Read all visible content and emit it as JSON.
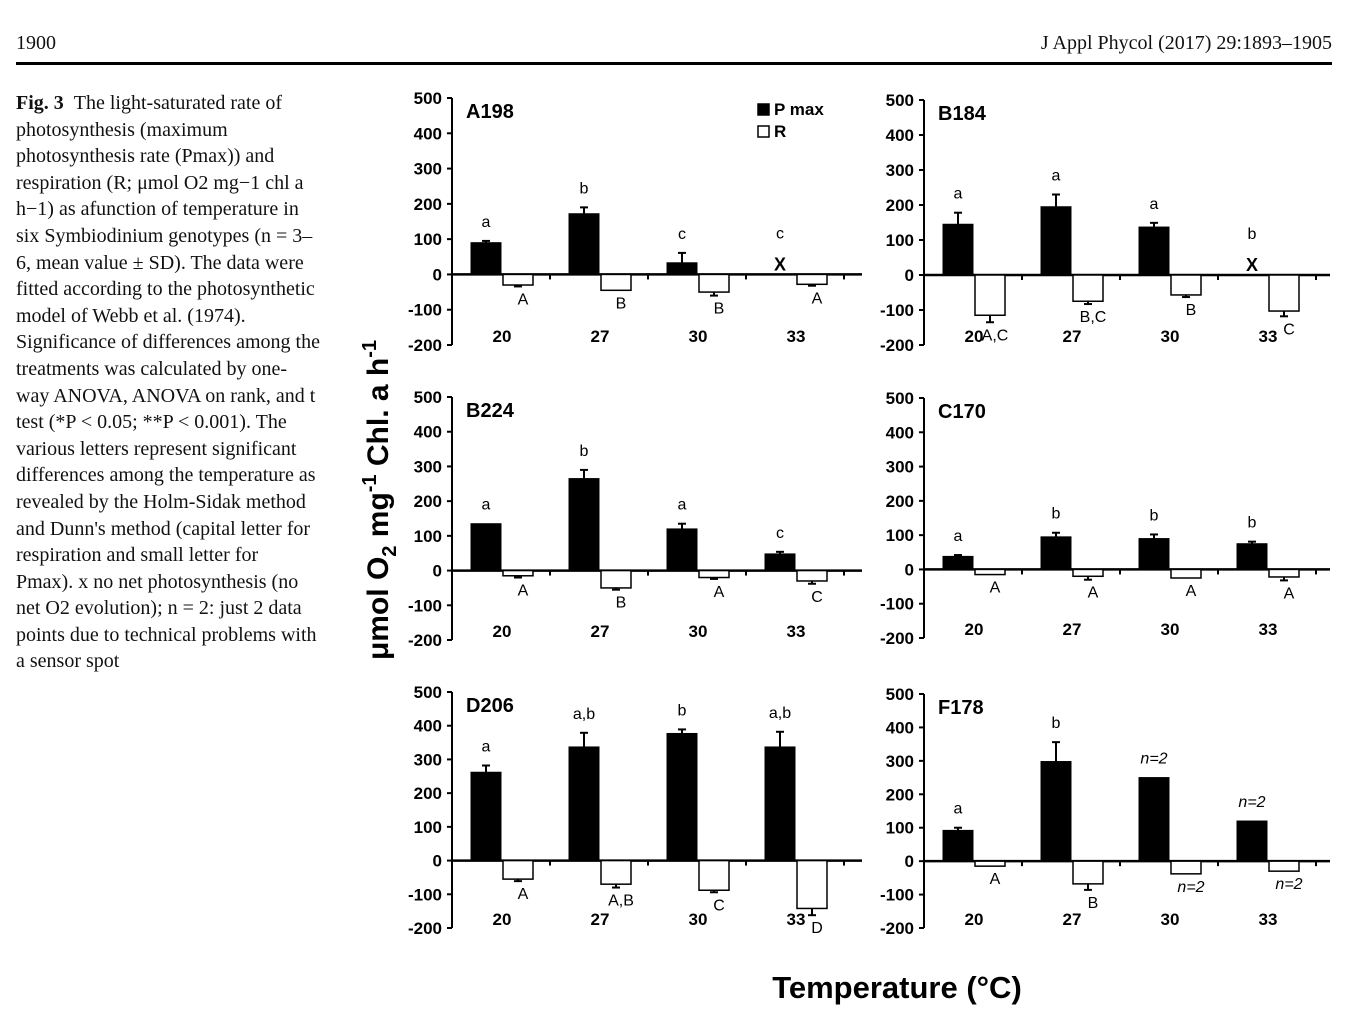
{
  "header": {
    "page_number": "1900",
    "journal": "J Appl Phycol (2017) 29:1893–1905"
  },
  "caption": {
    "label": "Fig. 3",
    "text": "The light-saturated rate of photosynthesis (maximum photosynthesis rate (Pmax)) and respiration (R; μmol O2 mg−1 chl a h−1) as afunction of temperature in six Symbiodinium genotypes (n = 3–6, mean value ± SD). The data were fitted according to the photosynthetic model of Webb et al. (1974). Significance of differences among the treatments was calculated by one-way ANOVA, ANOVA on rank, and t test (*P < 0.05; **P < 0.001). The various letters represent significant differences among the temperature as revealed by the Holm-Sidak method and Dunn's method (capital letter for respiration and small letter for Pmax). x no net photosynthesis (no net O2 evolution); n = 2: just 2 data points due to technical problems with a sensor spot"
  },
  "figure": {
    "y_axis_label_main": "μmol O",
    "y_axis_label_sub": "2",
    "y_axis_label_rest": " mg",
    "y_axis_label_sup1": "-1",
    "y_axis_label_rest2": " Chl. a h",
    "y_axis_label_sup2": "-1",
    "x_axis_label": "Temperature (°C)",
    "legend": [
      "P max",
      "R"
    ],
    "no_photosynthesis_marker": "X",
    "colors": {
      "pmax": "#000000",
      "r": "#ffffff",
      "axis": "#000000"
    }
  },
  "chart_data": [
    {
      "type": "bar",
      "title": "A198",
      "categories": [
        "20",
        "27",
        "30",
        "33"
      ],
      "ylim": [
        -200,
        500
      ],
      "yticks": [
        "500",
        "400",
        "300",
        "200",
        "100",
        "0",
        "-100",
        "-200"
      ],
      "show_legend": true,
      "series": [
        {
          "name": "P max",
          "values": [
            90,
            172,
            33,
            null
          ],
          "errors": [
            5,
            18,
            28,
            null
          ],
          "letters": [
            "a",
            "b",
            "c",
            "c"
          ],
          "markers": [
            null,
            null,
            null,
            "X"
          ]
        },
        {
          "name": "R",
          "values": [
            -30,
            -45,
            -50,
            -28
          ],
          "errors": [
            4,
            0,
            10,
            4
          ],
          "letters": [
            "A",
            "B",
            "B",
            "A"
          ]
        }
      ]
    },
    {
      "type": "bar",
      "title": "B184",
      "categories": [
        "20",
        "27",
        "30",
        "33"
      ],
      "ylim": [
        -200,
        500
      ],
      "yticks": [
        "500",
        "400",
        "300",
        "200",
        "100",
        "0",
        "-100",
        "-200"
      ],
      "series": [
        {
          "name": "P max",
          "values": [
            145,
            195,
            137,
            null
          ],
          "errors": [
            33,
            35,
            12,
            null
          ],
          "letters": [
            "a",
            "a",
            "a",
            "b"
          ],
          "markers": [
            null,
            null,
            null,
            "X"
          ]
        },
        {
          "name": "R",
          "values": [
            -115,
            -75,
            -57,
            -103
          ],
          "errors": [
            20,
            8,
            6,
            15
          ],
          "letters": [
            "A,C",
            "B,C",
            "B",
            "C"
          ]
        }
      ]
    },
    {
      "type": "bar",
      "title": "B224",
      "categories": [
        "20",
        "27",
        "30",
        "33"
      ],
      "ylim": [
        -200,
        500
      ],
      "yticks": [
        "500",
        "400",
        "300",
        "200",
        "100",
        "0",
        "-100",
        "-200"
      ],
      "series": [
        {
          "name": "P max",
          "values": [
            135,
            265,
            120,
            48
          ],
          "errors": [
            0,
            25,
            15,
            6
          ],
          "letters": [
            "a",
            "b",
            "a",
            "c"
          ]
        },
        {
          "name": "R",
          "values": [
            -15,
            -50,
            -20,
            -30
          ],
          "errors": [
            5,
            5,
            4,
            8
          ],
          "letters": [
            "A",
            "B",
            "A",
            "C"
          ]
        }
      ]
    },
    {
      "type": "bar",
      "title": "C170",
      "categories": [
        "20",
        "27",
        "30",
        "33"
      ],
      "ylim": [
        -200,
        500
      ],
      "yticks": [
        "500",
        "400",
        "300",
        "200",
        "100",
        "0",
        "-100",
        "-200"
      ],
      "series": [
        {
          "name": "P max",
          "values": [
            38,
            95,
            90,
            75
          ],
          "errors": [
            4,
            12,
            12,
            6
          ],
          "letters": [
            "a",
            "b",
            "b",
            "b"
          ]
        },
        {
          "name": "R",
          "values": [
            -15,
            -20,
            -25,
            -22
          ],
          "errors": [
            0,
            10,
            0,
            10
          ],
          "letters": [
            "A",
            "A",
            "A",
            "A"
          ]
        }
      ]
    },
    {
      "type": "bar",
      "title": "D206",
      "categories": [
        "20",
        "27",
        "30",
        "33"
      ],
      "ylim": [
        -200,
        500
      ],
      "yticks": [
        "500",
        "400",
        "300",
        "200",
        "100",
        "0",
        "-100",
        "-200"
      ],
      "series": [
        {
          "name": "P max",
          "values": [
            262,
            337,
            377,
            337
          ],
          "errors": [
            20,
            42,
            12,
            45
          ],
          "letters": [
            "a",
            "a,b",
            "b",
            "a,b"
          ]
        },
        {
          "name": "R",
          "values": [
            -55,
            -70,
            -88,
            -142
          ],
          "errors": [
            6,
            10,
            6,
            20
          ],
          "letters": [
            "A",
            "A,B",
            "C",
            "D"
          ]
        }
      ]
    },
    {
      "type": "bar",
      "title": "F178",
      "categories": [
        "20",
        "27",
        "30",
        "33"
      ],
      "ylim": [
        -200,
        500
      ],
      "yticks": [
        "500",
        "400",
        "300",
        "200",
        "100",
        "0",
        "-100",
        "-200"
      ],
      "series": [
        {
          "name": "P max",
          "values": [
            92,
            298,
            250,
            120
          ],
          "errors": [
            8,
            58,
            0,
            0
          ],
          "letters": [
            "a",
            "b",
            "n=2",
            "n=2"
          ]
        },
        {
          "name": "R",
          "values": [
            -15,
            -68,
            -38,
            -30
          ],
          "errors": [
            0,
            18,
            0,
            0
          ],
          "letters": [
            "A",
            "B",
            "n=2",
            "n=2"
          ]
        }
      ]
    }
  ]
}
